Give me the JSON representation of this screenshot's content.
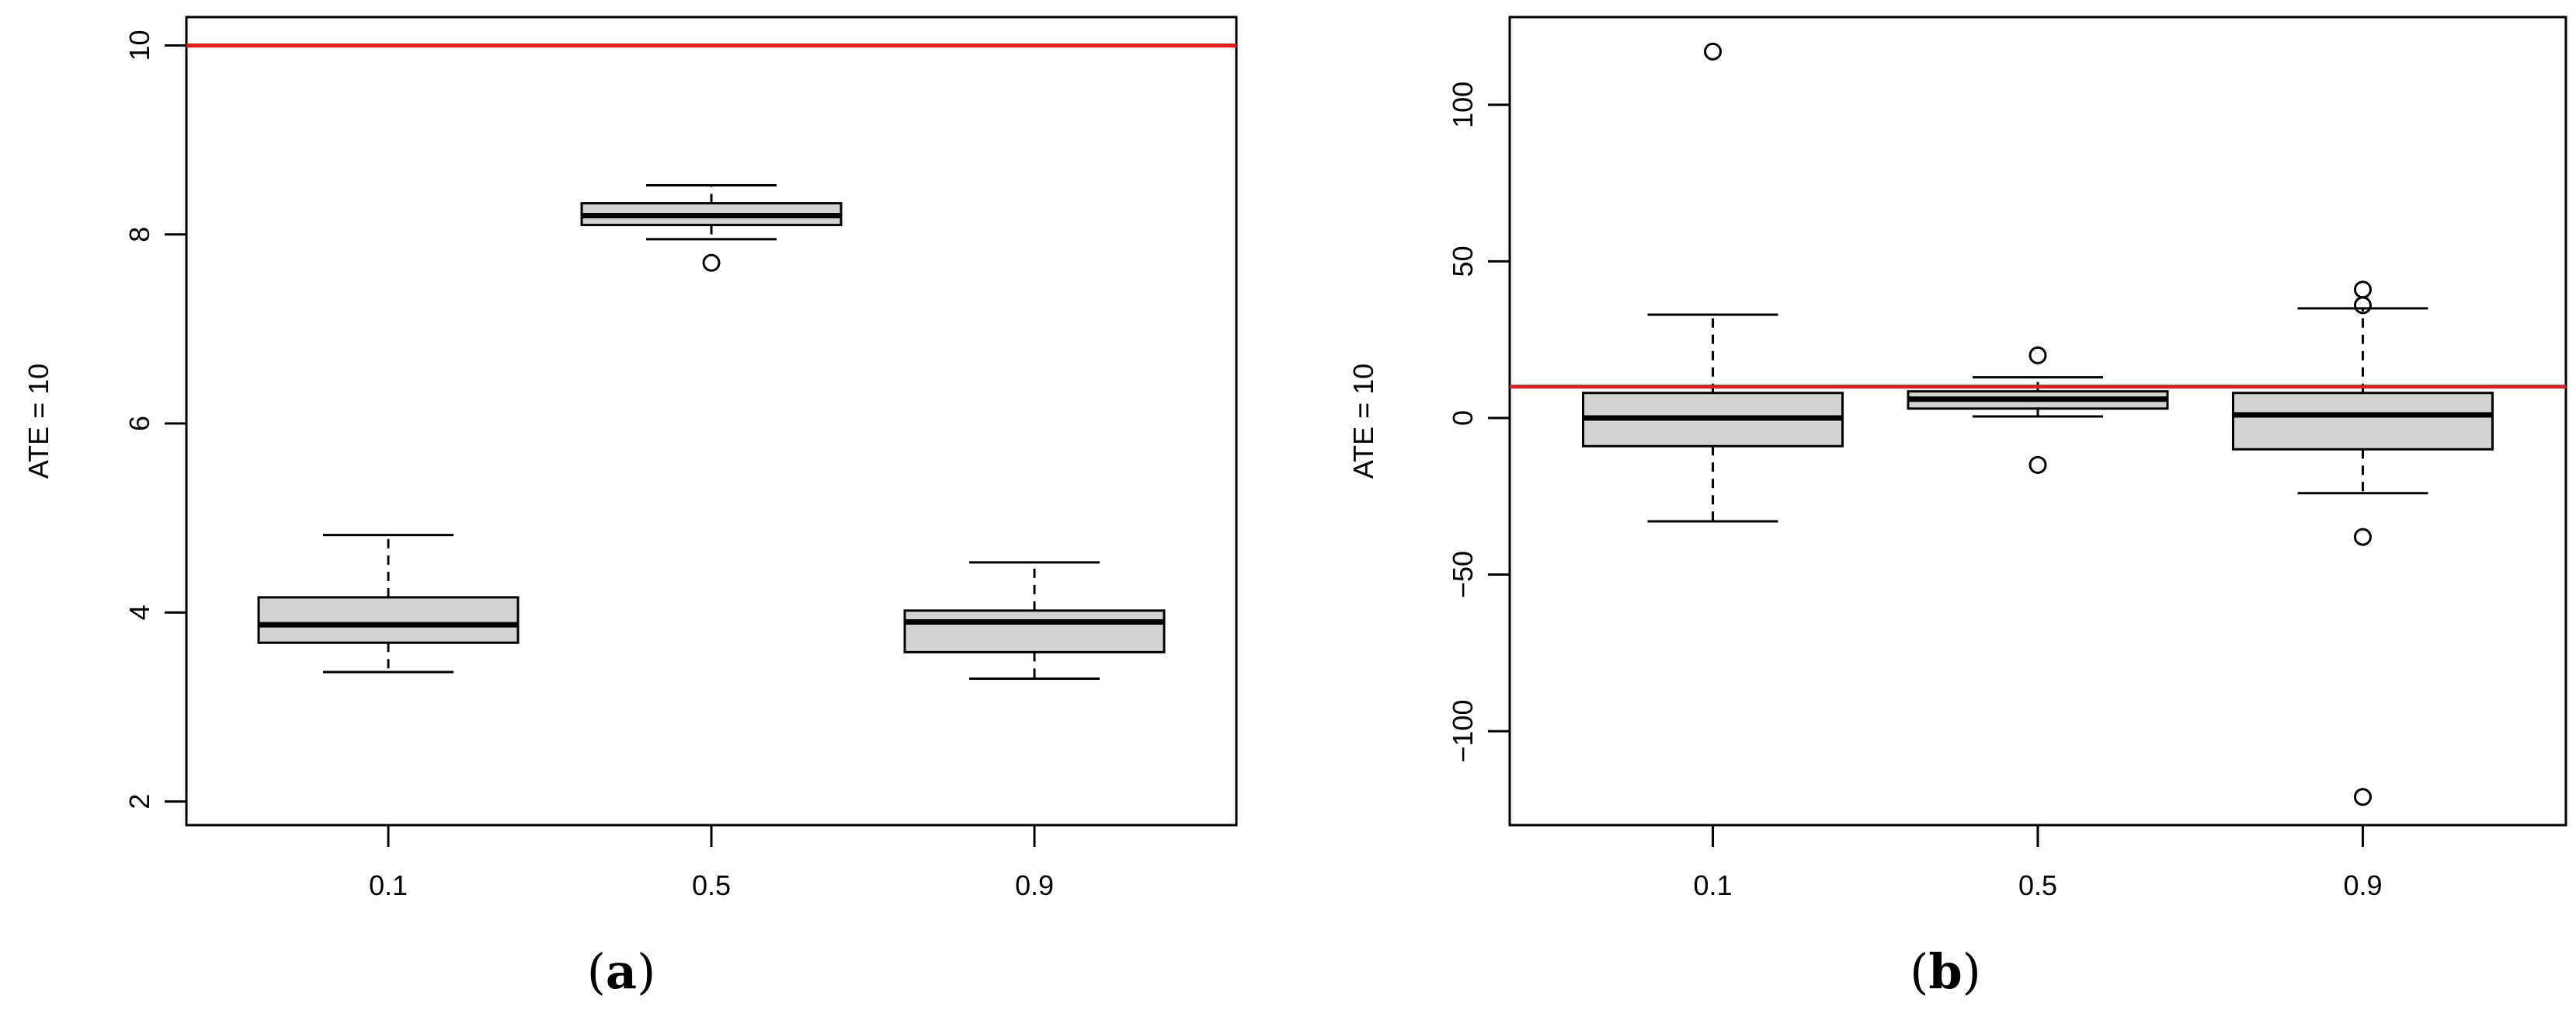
{
  "colors": {
    "reference_line": "#e41a1c",
    "box_fill": "#d3d3d3",
    "stroke": "#000000"
  },
  "chart_data": [
    {
      "type": "boxplot",
      "panel": "(a)",
      "caption_letter": "a",
      "ylabel": "ATE = 10",
      "categories": [
        "0.1",
        "0.5",
        "0.9"
      ],
      "yticks": [
        2,
        4,
        6,
        8,
        10
      ],
      "ytick_labels": [
        "2",
        "4",
        "6",
        "8",
        "10"
      ],
      "ylim": [
        1.75,
        10.3
      ],
      "reference_line": 10,
      "boxes": [
        {
          "category": "0.1",
          "whisker_low": 3.37,
          "q1": 3.68,
          "median": 3.87,
          "q3": 4.16,
          "whisker_high": 4.82,
          "outliers": []
        },
        {
          "category": "0.5",
          "whisker_low": 7.95,
          "q1": 8.1,
          "median": 8.2,
          "q3": 8.33,
          "whisker_high": 8.52,
          "outliers": [
            7.7
          ]
        },
        {
          "category": "0.9",
          "whisker_low": 3.3,
          "q1": 3.58,
          "median": 3.9,
          "q3": 4.02,
          "whisker_high": 4.53,
          "outliers": []
        }
      ],
      "grid": false
    },
    {
      "type": "boxplot",
      "panel": "(b)",
      "caption_letter": "b",
      "ylabel": "ATE = 10",
      "categories": [
        "0.1",
        "0.5",
        "0.9"
      ],
      "yticks": [
        -100,
        -50,
        0,
        50,
        100
      ],
      "ytick_labels": [
        "−100",
        "−50",
        "0",
        "50",
        "100"
      ],
      "ylim": [
        -130,
        128
      ],
      "reference_line": 10,
      "boxes": [
        {
          "category": "0.1",
          "whisker_low": -33,
          "q1": -9,
          "median": 0,
          "q3": 8,
          "whisker_high": 33,
          "outliers": [
            117
          ]
        },
        {
          "category": "0.5",
          "whisker_low": 0.5,
          "q1": 3,
          "median": 6,
          "q3": 8.5,
          "whisker_high": 13,
          "outliers": [
            20,
            -15
          ]
        },
        {
          "category": "0.9",
          "whisker_low": -24,
          "q1": -10,
          "median": 1,
          "q3": 8,
          "whisker_high": 35,
          "outliers": [
            41,
            36,
            -38,
            -121
          ]
        }
      ],
      "grid": false
    }
  ]
}
